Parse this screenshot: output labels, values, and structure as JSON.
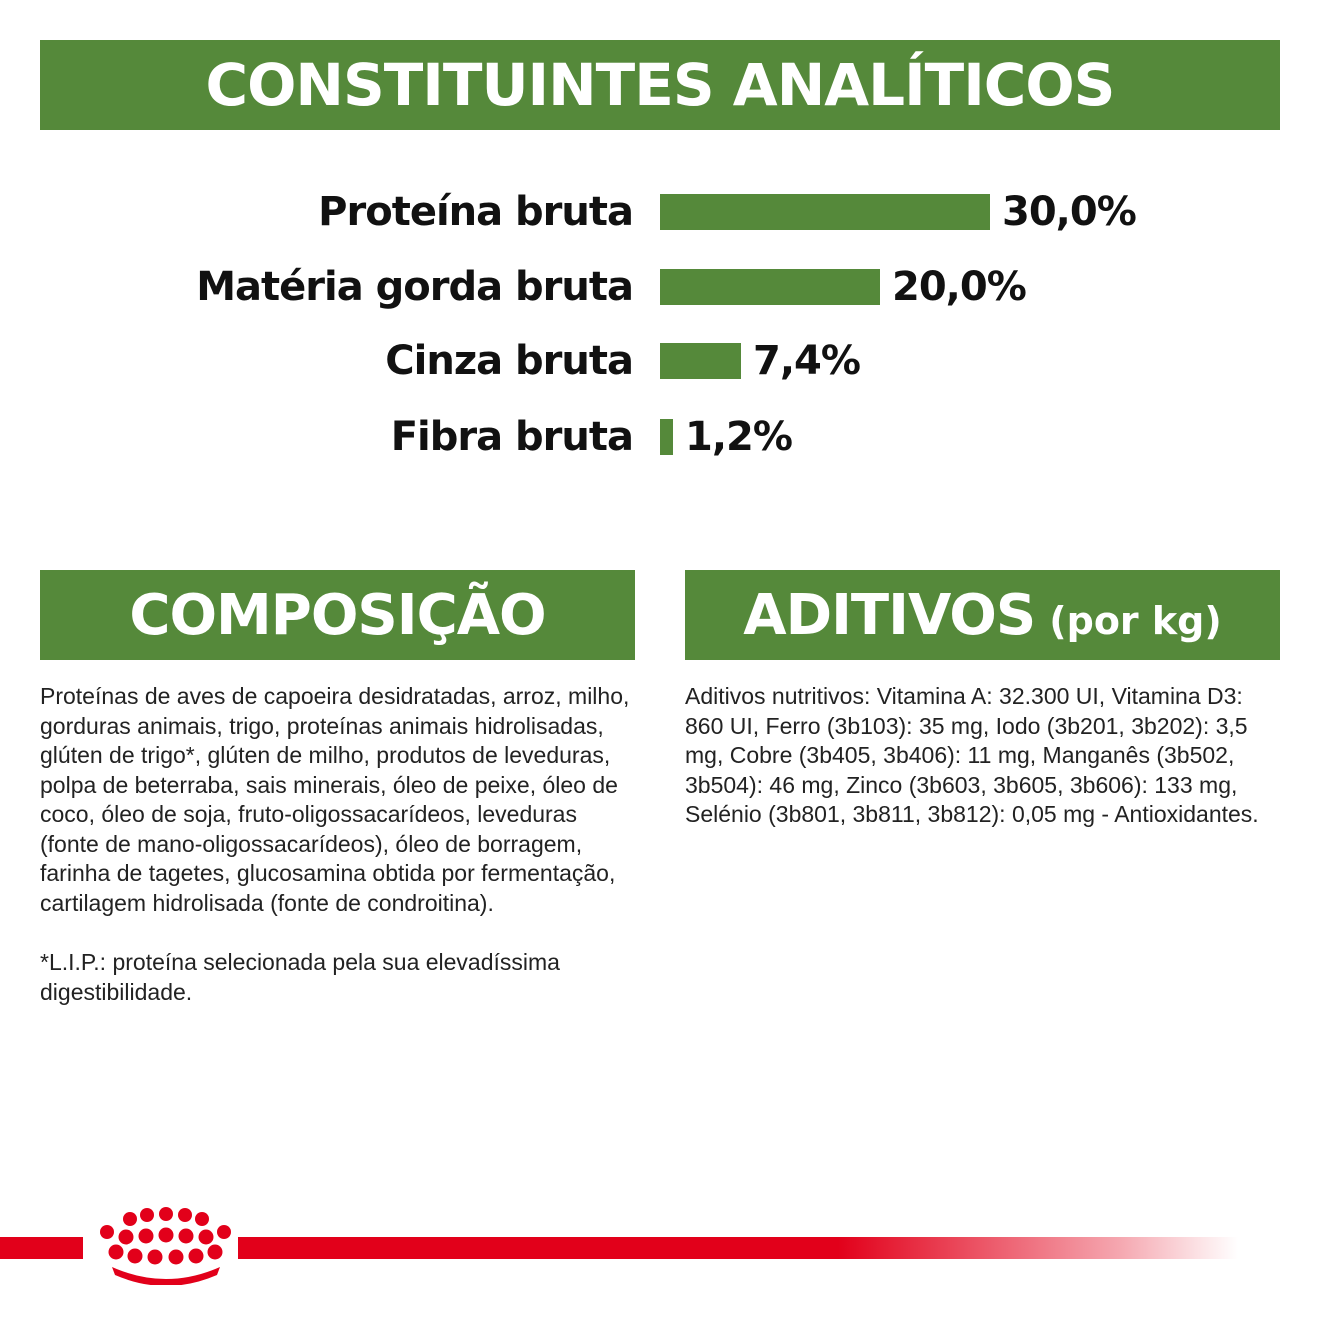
{
  "analiticos": {
    "title": "CONSTITUINTES ANALÍTICOS",
    "rows": [
      {
        "label": "Proteína bruta",
        "value": "30,0%",
        "percent": 30.0
      },
      {
        "label": "Matéria gorda bruta",
        "value": "20,0%",
        "percent": 20.0
      },
      {
        "label": "Cinza bruta",
        "value": "7,4%",
        "percent": 7.4
      },
      {
        "label": "Fibra bruta",
        "value": "1,2%",
        "percent": 1.2
      }
    ]
  },
  "composicao": {
    "title": "COMPOSIÇÃO",
    "text": "Proteínas de aves de capoeira desidratadas, arroz, milho, gorduras animais, trigo, proteínas animais hidrolisadas, glúten de trigo*, glúten de milho, produtos de leveduras, polpa de beterraba, sais minerais, óleo de peixe, óleo de coco, óleo de soja, fruto-oligossacarídeos, leveduras (fonte de mano-oligossacarídeos), óleo de borragem, farinha de tagetes, glucosamina obtida por fermentação, cartilagem hidrolisada (fonte de condroitina).",
    "note": "*L.I.P.: proteína selecionada pela sua elevadíssima digestibilidade."
  },
  "aditivos": {
    "title": "ADITIVOS",
    "subtitle": "(por kg)",
    "text": "Aditivos nutritivos: Vitamina A: 32.300 UI, Vitamina D3: 860 UI, Ferro (3b103): 35 mg, Iodo (3b201, 3b202): 3,5 mg, Cobre (3b405, 3b406): 11 mg, Manganês (3b502, 3b504): 46 mg, Zinco (3b603, 3b605, 3b606): 133 mg, Selénio (3b801, 3b811, 3b812): 0,05 mg - Antioxidantes."
  },
  "colors": {
    "green": "#55893a",
    "brand_red": "#e2001a"
  },
  "footer": {
    "logo_icon": "royal-canin-crown-icon"
  }
}
